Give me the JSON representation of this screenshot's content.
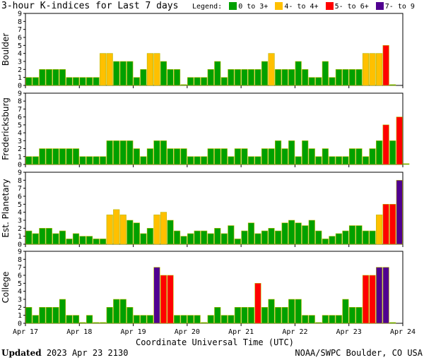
{
  "title": "3-hour K-indices for Last 7 days",
  "legend": {
    "label": "Legend:",
    "items": [
      {
        "label": "0 to 3+",
        "color": "#00a000"
      },
      {
        "label": "4- to 4+",
        "color": "#ffc000"
      },
      {
        "label": "5- to 6+",
        "color": "#ff0000"
      },
      {
        "label": "7- to 9",
        "color": "#500090"
      }
    ]
  },
  "x_label": "Coordinate Universal Time (UTC)",
  "updated_label": "Updated",
  "updated_value": "2023 Apr 23 2130",
  "credit": "NOAA/SWPC Boulder, CO USA",
  "chart_data": {
    "type": "bar",
    "x_ticks": [
      "Apr 17",
      "Apr 18",
      "Apr 19",
      "Apr 20",
      "Apr 21",
      "Apr 22",
      "Apr 23",
      "Apr 24"
    ],
    "ylim": [
      0,
      9
    ],
    "y_ticks": [
      0,
      1,
      2,
      3,
      4,
      5,
      6,
      7,
      8,
      9
    ],
    "grid": false,
    "bars_per_day": 8,
    "colors": {
      "low": "#00a000",
      "mid": "#ffc000",
      "high": "#ff0000",
      "extreme": "#500090"
    },
    "series": [
      {
        "name": "Boulder",
        "values": [
          1,
          1,
          2,
          2,
          2,
          2,
          1,
          1,
          1,
          1,
          1,
          4,
          4,
          3,
          3,
          3,
          1,
          2,
          4,
          4,
          3,
          2,
          2,
          0.1,
          1,
          1,
          1,
          2,
          3,
          1,
          2,
          2,
          2,
          2,
          2,
          3,
          4,
          2,
          2,
          2,
          3,
          2,
          1,
          1,
          3,
          1,
          2,
          2,
          2,
          2,
          4,
          4,
          4,
          5,
          0.1
        ]
      },
      {
        "name": "Fredericksburg",
        "values": [
          1,
          1,
          2,
          2,
          2,
          2,
          2,
          2,
          1,
          1,
          1,
          1,
          3,
          3,
          3,
          3,
          2,
          1,
          2,
          3,
          3,
          2,
          2,
          2,
          1,
          1,
          1,
          2,
          2,
          2,
          1,
          2,
          2,
          1,
          1,
          2,
          2,
          3,
          2,
          3,
          1,
          3,
          2,
          1,
          2,
          1,
          1,
          1,
          2,
          2,
          1,
          2,
          3,
          5,
          3,
          6,
          0.1
        ]
      },
      {
        "name": "Est. Planetary",
        "values": [
          1.67,
          1.33,
          2,
          2,
          1.33,
          1.67,
          0.67,
          1.33,
          1,
          1,
          0.67,
          0.67,
          3.67,
          4.33,
          3.67,
          3,
          2.67,
          1.33,
          2,
          3.67,
          4,
          3,
          1.67,
          1,
          1.33,
          1.67,
          1.67,
          1.33,
          2,
          1.33,
          2.33,
          0.67,
          1.67,
          2.67,
          1.33,
          1.67,
          2,
          1.67,
          2.67,
          3,
          2.67,
          2.33,
          3,
          1.67,
          0.67,
          1,
          1.33,
          1.67,
          2.33,
          2.33,
          1.67,
          1.67,
          3.67,
          5,
          5,
          8
        ]
      },
      {
        "name": "College",
        "values": [
          2,
          1,
          2,
          2,
          2,
          3,
          1,
          1,
          0.1,
          1,
          0.1,
          0.1,
          2,
          3,
          3,
          2,
          1,
          1,
          1,
          7,
          6,
          6,
          1,
          1,
          1,
          1,
          0.1,
          1,
          2,
          1,
          1,
          2,
          2,
          2,
          5,
          2,
          3,
          2,
          2,
          3,
          3,
          1,
          1,
          0.1,
          1,
          1,
          1,
          3,
          2,
          2,
          6,
          6,
          7,
          7,
          0.1
        ]
      }
    ]
  }
}
